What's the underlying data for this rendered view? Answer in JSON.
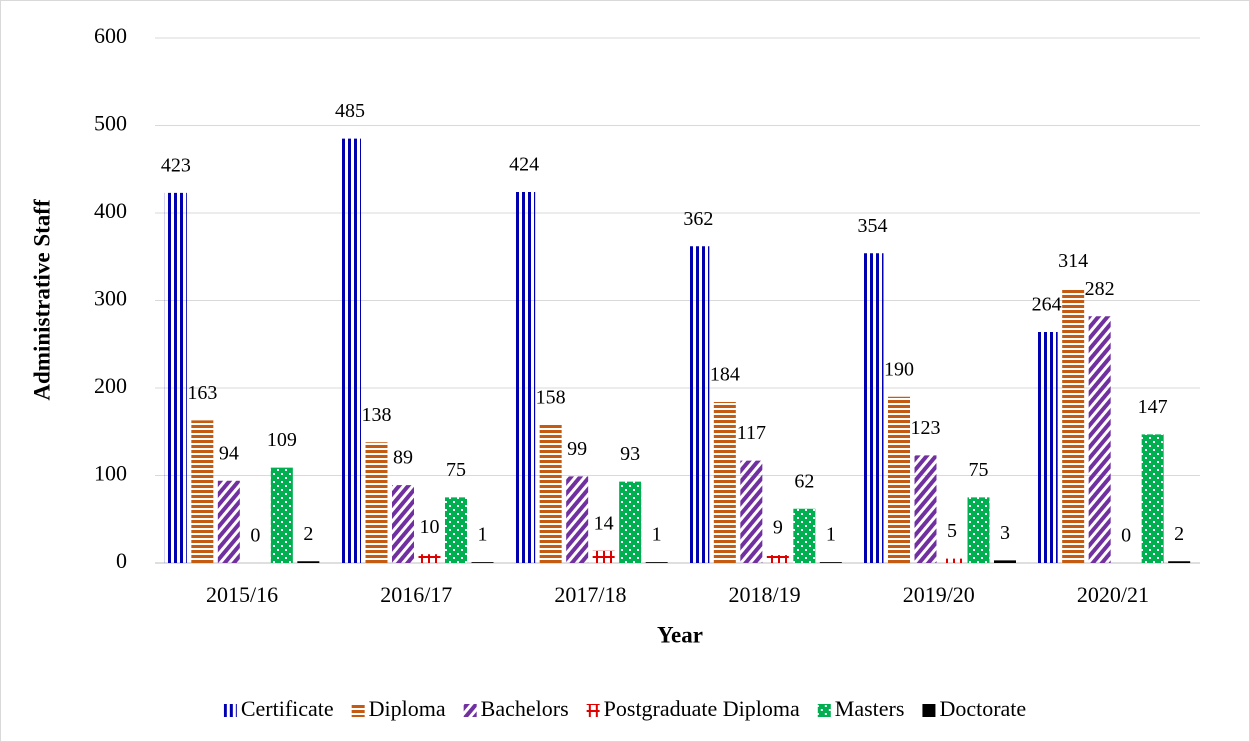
{
  "chart_data": {
    "type": "bar",
    "x_label": "Year",
    "y_label": "Administrative Staff",
    "categories": [
      "2015/16",
      "2016/17",
      "2017/18",
      "2018/19",
      "2019/20",
      "2020/21"
    ],
    "series": [
      {
        "name": "Certificate",
        "color": "#0000b0",
        "values": [
          423,
          485,
          424,
          362,
          354,
          264
        ]
      },
      {
        "name": "Diploma",
        "color": "#c55a11",
        "values": [
          163,
          138,
          158,
          184,
          190,
          314
        ]
      },
      {
        "name": "Bachelors",
        "color": "#7030a0",
        "values": [
          94,
          89,
          99,
          117,
          123,
          282
        ]
      },
      {
        "name": "Postgraduate Diploma",
        "color": "#e00000",
        "values": [
          0,
          10,
          14,
          9,
          5,
          0
        ]
      },
      {
        "name": "Masters",
        "color": "#00b050",
        "values": [
          109,
          75,
          93,
          62,
          75,
          147
        ]
      },
      {
        "name": "Doctorate",
        "color": "#000000",
        "values": [
          2,
          1,
          1,
          1,
          3,
          2
        ]
      }
    ],
    "ylim": [
      0,
      600
    ],
    "yticks": [
      0,
      100,
      200,
      300,
      400,
      500,
      600
    ],
    "grid": true,
    "legend": "bottom"
  }
}
